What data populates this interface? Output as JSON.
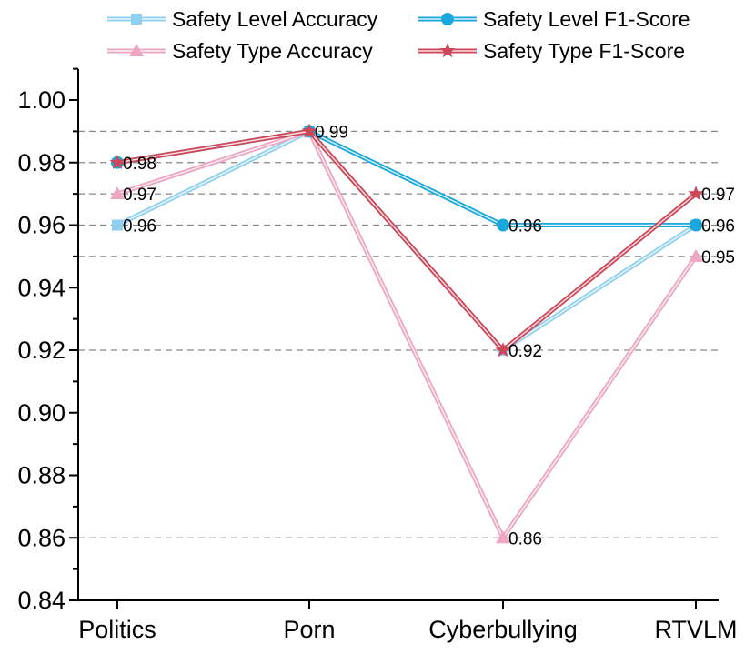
{
  "chart_data": {
    "type": "line",
    "title": "",
    "xlabel": "",
    "ylabel": "",
    "categories": [
      "Politics",
      "Porn",
      "Cyberbullying",
      "RTVLM"
    ],
    "ylim": [
      0.84,
      1.01
    ],
    "yticks": [
      "0.84",
      "0.86",
      "0.88",
      "0.90",
      "0.92",
      "0.94",
      "0.96",
      "0.98",
      "1.00"
    ],
    "reference_lines": [
      0.99,
      0.98,
      0.97,
      0.96,
      0.95,
      0.92,
      0.86
    ],
    "legend_position": "top",
    "series": [
      {
        "name": "Safety Level Accuracy",
        "marker": "square",
        "color": "#8fd0f0",
        "values": [
          0.96,
          0.99,
          0.92,
          0.96
        ],
        "labels": [
          "0.96",
          "",
          "",
          ""
        ]
      },
      {
        "name": "Safety Level F1-Score",
        "marker": "circle",
        "color": "#1aa8dc",
        "values": [
          0.98,
          0.99,
          0.96,
          0.96
        ],
        "labels": [
          "",
          "",
          "0.96",
          "0.96"
        ]
      },
      {
        "name": "Safety Type Accuracy",
        "marker": "triangle",
        "color": "#eea6c2",
        "values": [
          0.97,
          0.99,
          0.86,
          0.95
        ],
        "labels": [
          "0.97",
          "",
          "0.86",
          "0.95"
        ]
      },
      {
        "name": "Safety Type F1-Score",
        "marker": "star",
        "color": "#cf4658",
        "values": [
          0.98,
          0.99,
          0.92,
          0.97
        ],
        "labels": [
          "0.98",
          "0.99",
          "0.92",
          "0.97"
        ]
      }
    ]
  }
}
